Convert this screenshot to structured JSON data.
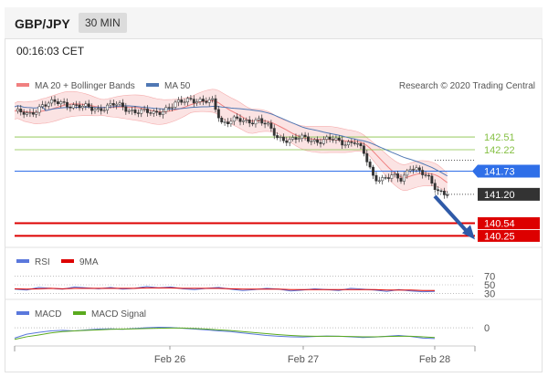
{
  "header": {
    "symbol": "GBP/JPY",
    "timeframe": "30 MIN"
  },
  "clock": "00:16:03 CET",
  "legend": {
    "bollinger": "MA 20 + Bollinger Bands",
    "ma50": "MA 50",
    "copyright": "Research © 2020 Trading Central",
    "rsi": "RSI",
    "rsi_ma": "9MA",
    "macd": "MACD",
    "macd_signal": "MACD Signal"
  },
  "colors": {
    "bollinger": "#f08080",
    "bollinger_fill": "#fbe3e3",
    "ma50": "#5078b4",
    "price": "#333333",
    "support": "#dd0000",
    "resistance": "#86c045",
    "pivot": "#2f6fe8",
    "last": "#333333",
    "arrow": "#2f5aa8",
    "rsi": "#5a78dc",
    "macd": "#5a78dc",
    "macd_signal": "#5aaa1e"
  },
  "chart_data": [
    {
      "type": "candlestick",
      "title": "GBP/JPY",
      "timeframe": "30 MIN",
      "x_ticks": [
        "Feb 26",
        "Feb 27",
        "Feb 28"
      ],
      "ylim": [
        140.05,
        143.45
      ],
      "levels": [
        {
          "value": 142.51,
          "label": "142.51",
          "kind": "resistance"
        },
        {
          "value": 142.22,
          "label": "142.22",
          "kind": "resistance"
        },
        {
          "value": 141.73,
          "label": "141.73",
          "kind": "pivot"
        },
        {
          "value": 141.2,
          "label": "141.20",
          "kind": "last"
        },
        {
          "value": 140.54,
          "label": "140.54",
          "kind": "support"
        },
        {
          "value": 140.25,
          "label": "140.25",
          "kind": "support"
        }
      ],
      "forecast": {
        "from": 141.2,
        "to": 140.25,
        "direction": "down"
      },
      "close_path": [
        {
          "t": 0.0,
          "v": 143.1
        },
        {
          "t": 0.03,
          "v": 143.0
        },
        {
          "t": 0.06,
          "v": 143.25
        },
        {
          "t": 0.1,
          "v": 143.3
        },
        {
          "t": 0.14,
          "v": 143.2
        },
        {
          "t": 0.18,
          "v": 143.15
        },
        {
          "t": 0.22,
          "v": 143.25
        },
        {
          "t": 0.26,
          "v": 143.1
        },
        {
          "t": 0.3,
          "v": 143.05
        },
        {
          "t": 0.34,
          "v": 143.2
        },
        {
          "t": 0.36,
          "v": 143.3
        },
        {
          "t": 0.38,
          "v": 143.4
        },
        {
          "t": 0.41,
          "v": 143.3
        },
        {
          "t": 0.43,
          "v": 143.32
        },
        {
          "t": 0.45,
          "v": 142.85
        },
        {
          "t": 0.48,
          "v": 142.9
        },
        {
          "t": 0.5,
          "v": 142.85
        },
        {
          "t": 0.53,
          "v": 142.92
        },
        {
          "t": 0.55,
          "v": 142.75
        },
        {
          "t": 0.57,
          "v": 142.5
        },
        {
          "t": 0.6,
          "v": 142.45
        },
        {
          "t": 0.63,
          "v": 142.48
        },
        {
          "t": 0.66,
          "v": 142.42
        },
        {
          "t": 0.69,
          "v": 142.45
        },
        {
          "t": 0.72,
          "v": 142.38
        },
        {
          "t": 0.74,
          "v": 142.4
        },
        {
          "t": 0.76,
          "v": 142.1
        },
        {
          "t": 0.78,
          "v": 141.6
        },
        {
          "t": 0.8,
          "v": 141.55
        },
        {
          "t": 0.82,
          "v": 141.6
        },
        {
          "t": 0.84,
          "v": 141.55
        },
        {
          "t": 0.86,
          "v": 141.85
        },
        {
          "t": 0.88,
          "v": 141.7
        },
        {
          "t": 0.9,
          "v": 141.55
        },
        {
          "t": 0.92,
          "v": 141.3
        },
        {
          "t": 0.94,
          "v": 141.2
        }
      ]
    },
    {
      "type": "line",
      "title": "RSI",
      "y_ticks": [
        70,
        50,
        30
      ],
      "ylim": [
        25,
        75
      ],
      "series": [
        {
          "name": "RSI",
          "values": [
            40,
            38,
            44,
            42,
            40,
            45,
            43,
            41,
            44,
            40,
            42,
            46,
            43,
            45,
            41,
            39,
            42,
            44,
            40,
            37,
            39,
            42,
            40,
            36,
            38,
            41,
            39,
            37,
            42,
            40,
            38,
            35,
            39,
            36,
            34,
            35
          ]
        },
        {
          "name": "9MA",
          "values": [
            41,
            40,
            41,
            42,
            41,
            42,
            42,
            42,
            42,
            42,
            42,
            43,
            43,
            43,
            42,
            42,
            42,
            42,
            41,
            40,
            40,
            40,
            40,
            39,
            39,
            39,
            39,
            39,
            39,
            39,
            39,
            38,
            38,
            38,
            37,
            37
          ]
        }
      ]
    },
    {
      "type": "line",
      "title": "MACD",
      "y_ticks": [
        0
      ],
      "ylim": [
        -0.6,
        0.25
      ],
      "series": [
        {
          "name": "MACD",
          "values": [
            -0.4,
            -0.25,
            -0.18,
            -0.12,
            -0.1,
            -0.12,
            -0.08,
            -0.05,
            -0.04,
            -0.06,
            -0.03,
            0.0,
            0.02,
            0.01,
            -0.02,
            -0.05,
            -0.08,
            -0.12,
            -0.15,
            -0.2,
            -0.25,
            -0.3,
            -0.33,
            -0.35,
            -0.36,
            -0.34,
            -0.32,
            -0.33,
            -0.35,
            -0.38,
            -0.36,
            -0.33,
            -0.3,
            -0.34,
            -0.4,
            -0.42
          ]
        },
        {
          "name": "MACD Signal",
          "values": [
            -0.45,
            -0.35,
            -0.28,
            -0.2,
            -0.15,
            -0.12,
            -0.1,
            -0.08,
            -0.06,
            -0.05,
            -0.04,
            -0.03,
            -0.02,
            -0.01,
            -0.01,
            -0.03,
            -0.05,
            -0.08,
            -0.11,
            -0.15,
            -0.19,
            -0.23,
            -0.27,
            -0.3,
            -0.32,
            -0.33,
            -0.33,
            -0.33,
            -0.34,
            -0.35,
            -0.35,
            -0.34,
            -0.33,
            -0.33,
            -0.35,
            -0.38
          ]
        }
      ]
    }
  ]
}
